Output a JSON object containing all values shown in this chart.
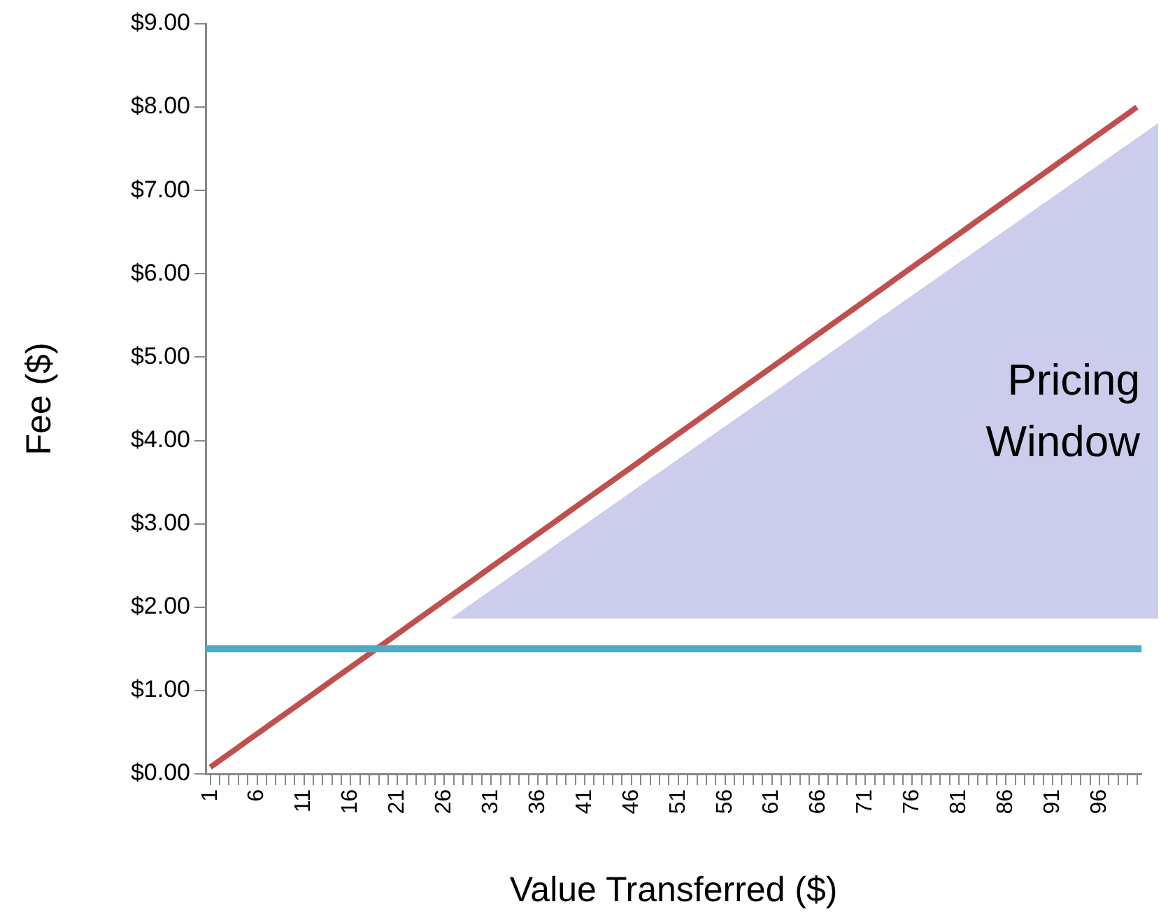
{
  "chart_data": {
    "type": "line",
    "xlabel": "Value Transferred ($)",
    "ylabel": "Fee ($)",
    "categories": [
      "1",
      null,
      null,
      null,
      null,
      "6",
      null,
      null,
      null,
      null,
      "11",
      null,
      null,
      null,
      null,
      "16",
      null,
      null,
      null,
      null,
      "21",
      null,
      null,
      null,
      null,
      "26",
      null,
      null,
      null,
      null,
      "31",
      null,
      null,
      null,
      null,
      "36",
      null,
      null,
      null,
      null,
      "41",
      null,
      null,
      null,
      null,
      "46",
      null,
      null,
      null,
      null,
      "51",
      null,
      null,
      null,
      null,
      "56",
      null,
      null,
      null,
      null,
      "61",
      null,
      null,
      null,
      null,
      "66",
      null,
      null,
      null,
      null,
      "71",
      null,
      null,
      null,
      null,
      "76",
      null,
      null,
      null,
      null,
      "81",
      null,
      null,
      null,
      null,
      "86",
      null,
      null,
      null,
      null,
      "91",
      null,
      null,
      null,
      null,
      "96",
      null,
      null,
      null,
      null
    ],
    "series": [
      {
        "color": "#c0504d",
        "values": [
          0.08,
          0.16,
          0.24,
          0.32,
          0.4,
          0.48,
          0.56,
          0.64,
          0.72,
          0.8,
          0.88,
          0.96,
          1.04,
          1.12,
          1.2,
          1.28,
          1.36,
          1.44,
          1.52,
          1.6,
          1.68,
          1.76,
          1.84,
          1.92,
          2,
          2.08,
          2.16,
          2.24,
          2.32,
          2.4,
          2.48,
          2.56,
          2.64,
          2.72,
          2.8,
          2.88,
          2.96,
          3.04,
          3.12,
          3.2,
          3.28,
          3.36,
          3.44,
          3.52,
          3.6,
          3.68,
          3.76,
          3.84,
          3.92,
          4,
          4.08,
          4.16,
          4.24,
          4.32,
          4.4,
          4.48,
          4.56,
          4.64,
          4.72,
          4.8,
          4.88,
          4.96,
          5.04,
          5.12,
          5.2,
          5.28,
          5.36,
          5.44,
          5.52,
          5.6,
          5.68,
          5.76,
          5.84,
          5.92,
          6,
          6.08,
          6.16,
          6.24,
          6.32,
          6.4,
          6.48,
          6.56,
          6.64,
          6.72,
          6.8,
          6.88,
          6.96,
          7.04,
          7.12,
          7.2,
          7.28,
          7.36,
          7.44,
          7.52,
          7.6,
          7.68,
          7.76,
          7.84,
          7.92,
          8
        ]
      }
    ],
    "ylim": [
      0,
      9
    ],
    "yticks": [
      {
        "value": 0,
        "label": "$0.00"
      },
      {
        "value": 1,
        "label": "$1.00"
      },
      {
        "value": 2,
        "label": "$2.00"
      },
      {
        "value": 3,
        "label": "$3.00"
      },
      {
        "value": 4,
        "label": "$4.00"
      },
      {
        "value": 5,
        "label": "$5.00"
      },
      {
        "value": 6,
        "label": "$6.00"
      },
      {
        "value": 7,
        "label": "$7.00"
      },
      {
        "value": 8,
        "label": "$8.00"
      },
      {
        "value": 9,
        "label": "$9.00"
      }
    ],
    "ref_lines": [
      {
        "axis": "y",
        "value": 1.5,
        "color": "#4bacc6"
      }
    ],
    "annotations": [
      "Pricing Window"
    ],
    "marker": "none",
    "line_style": "solid",
    "grid": false,
    "legend": false
  }
}
